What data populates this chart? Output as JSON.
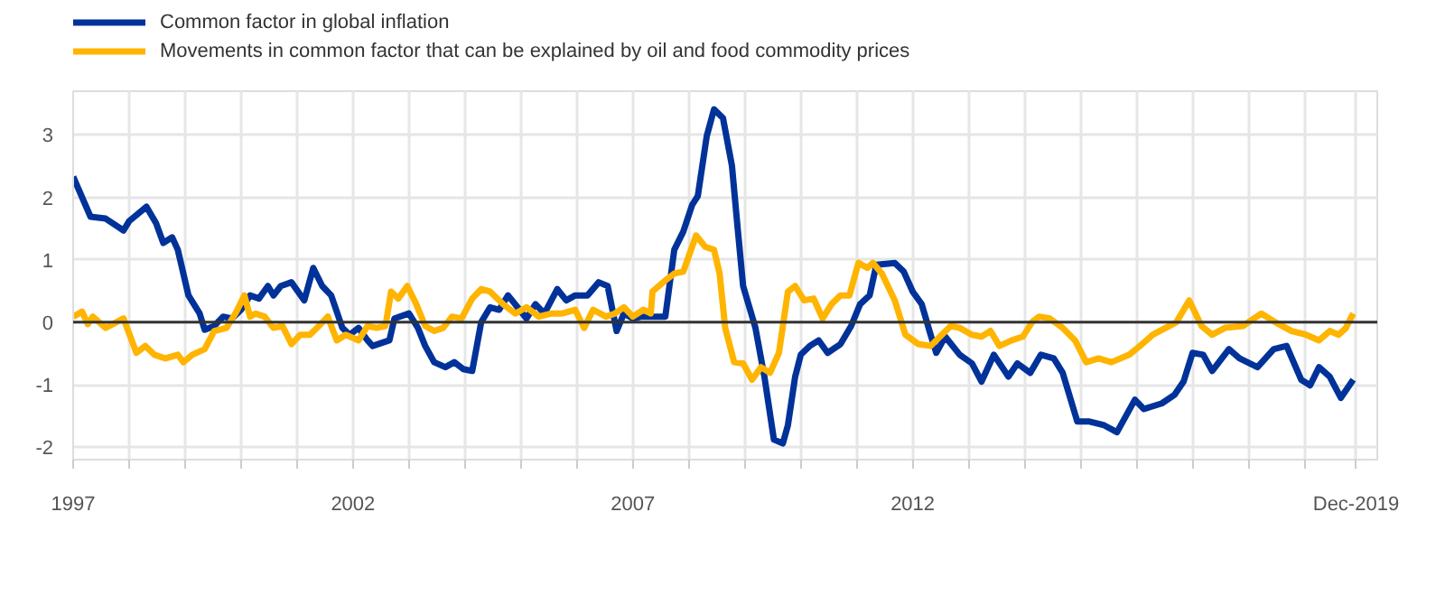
{
  "chart_data": {
    "type": "line",
    "xlim": [
      1997,
      2020.3
    ],
    "ylim": [
      -2.2,
      3.7
    ],
    "xticks": [
      1997,
      {
        "value": 1998,
        "label": null
      },
      {
        "value": 1999,
        "label": null
      },
      {
        "value": 2000,
        "label": null
      },
      {
        "value": 2001,
        "label": null
      },
      2002,
      {
        "value": 2003,
        "label": null
      },
      {
        "value": 2004,
        "label": null
      },
      {
        "value": 2005,
        "label": null
      },
      {
        "value": 2006,
        "label": null
      },
      2007,
      {
        "value": 2008,
        "label": null
      },
      {
        "value": 2009,
        "label": null
      },
      {
        "value": 2010,
        "label": null
      },
      {
        "value": 2011,
        "label": null
      },
      2012,
      {
        "value": 2013,
        "label": null
      },
      {
        "value": 2014,
        "label": null
      },
      {
        "value": 2015,
        "label": null
      },
      {
        "value": 2016,
        "label": null
      },
      {
        "value": 2017,
        "label": null
      },
      {
        "value": 2018,
        "label": null
      },
      {
        "value": 2019,
        "label": null
      },
      {
        "value": 2019.92,
        "label": "Dec-2019"
      }
    ],
    "yticks": [
      -2,
      -1,
      0,
      1,
      2,
      3
    ],
    "grid": true,
    "legend": "top left",
    "marker": "none",
    "line_style": "solid",
    "ref_lines": [
      {
        "axis": "y",
        "value": 0,
        "color": "#333333"
      }
    ],
    "series": [
      {
        "name": "Common factor in global inflation",
        "color": "#003299",
        "x": [
          1997.0,
          1997.31,
          1997.58,
          1997.9,
          1998.0,
          1998.31,
          1998.48,
          1998.61,
          1998.77,
          1998.87,
          1999.06,
          1999.26,
          1999.35,
          1999.52,
          1999.68,
          1999.84,
          2000.0,
          2000.16,
          2000.32,
          2000.48,
          2000.58,
          2000.71,
          2000.9,
          2001.13,
          2001.29,
          2001.45,
          2001.61,
          2001.81,
          2001.94,
          2002.1,
          2002.26,
          2002.35,
          2002.65,
          2002.74,
          2003.0,
          2003.16,
          2003.29,
          2003.45,
          2003.65,
          2003.81,
          2003.97,
          2004.13,
          2004.29,
          2004.45,
          2004.61,
          2004.77,
          2004.94,
          2005.1,
          2005.26,
          2005.42,
          2005.65,
          2005.81,
          2005.97,
          2006.19,
          2006.39,
          2006.55,
          2006.71,
          2006.84,
          2007.0,
          2007.16,
          2007.58,
          2007.74,
          2007.9,
          2008.06,
          2008.16,
          2008.32,
          2008.45,
          2008.61,
          2008.77,
          2008.87,
          2008.97,
          2009.19,
          2009.35,
          2009.52,
          2009.68,
          2009.77,
          2009.9,
          2010.0,
          2010.16,
          2010.32,
          2010.48,
          2010.71,
          2010.9,
          2011.06,
          2011.23,
          2011.35,
          2011.68,
          2011.84,
          2012.0,
          2012.16,
          2012.32,
          2012.42,
          2012.58,
          2012.84,
          2013.06,
          2013.23,
          2013.45,
          2013.71,
          2013.87,
          2014.1,
          2014.29,
          2014.52,
          2014.68,
          2014.94,
          2015.16,
          2015.42,
          2015.65,
          2015.97,
          2016.13,
          2016.45,
          2016.68,
          2016.84,
          2017.0,
          2017.19,
          2017.35,
          2017.65,
          2017.84,
          2018.16,
          2018.45,
          2018.68,
          2018.94,
          2019.1,
          2019.26,
          2019.45,
          2019.65,
          2019.87
        ],
        "values": [
          2.33,
          1.69,
          1.66,
          1.47,
          1.62,
          1.85,
          1.59,
          1.27,
          1.36,
          1.16,
          0.43,
          0.14,
          -0.12,
          -0.06,
          0.09,
          0.06,
          0.2,
          0.43,
          0.38,
          0.58,
          0.43,
          0.58,
          0.64,
          0.35,
          0.87,
          0.58,
          0.43,
          -0.09,
          -0.2,
          -0.09,
          -0.29,
          -0.38,
          -0.29,
          0.06,
          0.14,
          -0.09,
          -0.38,
          -0.64,
          -0.72,
          -0.64,
          -0.75,
          -0.78,
          0.0,
          0.24,
          0.2,
          0.43,
          0.24,
          0.06,
          0.29,
          0.14,
          0.53,
          0.35,
          0.43,
          0.43,
          0.64,
          0.58,
          -0.14,
          0.14,
          0.06,
          0.09,
          0.09,
          1.16,
          1.45,
          1.88,
          2.02,
          2.98,
          3.41,
          3.27,
          2.51,
          1.53,
          0.58,
          -0.09,
          -0.87,
          -1.88,
          -1.94,
          -1.65,
          -0.87,
          -0.52,
          -0.38,
          -0.29,
          -0.49,
          -0.35,
          -0.06,
          0.29,
          0.43,
          0.92,
          0.95,
          0.81,
          0.49,
          0.29,
          -0.2,
          -0.49,
          -0.23,
          -0.52,
          -0.66,
          -0.95,
          -0.52,
          -0.87,
          -0.66,
          -0.81,
          -0.52,
          -0.58,
          -0.81,
          -1.59,
          -1.59,
          -1.65,
          -1.76,
          -1.24,
          -1.39,
          -1.3,
          -1.16,
          -0.95,
          -0.49,
          -0.52,
          -0.78,
          -0.43,
          -0.58,
          -0.72,
          -0.43,
          -0.38,
          -0.92,
          -1.01,
          -0.72,
          -0.87,
          -1.21,
          -0.92
        ]
      },
      {
        "name": "Movements in common factor that can be explained by oil and food commodity prices",
        "color": "#ffb400",
        "x": [
          1997.0,
          1997.16,
          1997.26,
          1997.35,
          1997.58,
          1997.9,
          1998.13,
          1998.29,
          1998.45,
          1998.65,
          1998.87,
          1998.97,
          1999.13,
          1999.35,
          1999.52,
          1999.74,
          1999.9,
          2000.06,
          2000.16,
          2000.26,
          2000.42,
          2000.58,
          2000.74,
          2000.9,
          2001.06,
          2001.23,
          2001.39,
          2001.55,
          2001.71,
          2001.87,
          2002.1,
          2002.26,
          2002.42,
          2002.58,
          2002.68,
          2002.81,
          2002.97,
          2003.13,
          2003.29,
          2003.45,
          2003.61,
          2003.77,
          2003.94,
          2004.13,
          2004.29,
          2004.45,
          2004.68,
          2004.9,
          2005.1,
          2005.32,
          2005.55,
          2005.74,
          2005.97,
          2006.13,
          2006.29,
          2006.52,
          2006.68,
          2006.84,
          2007.0,
          2007.19,
          2007.32,
          2007.35,
          2007.58,
          2007.74,
          2007.9,
          2008.13,
          2008.29,
          2008.45,
          2008.55,
          2008.65,
          2008.81,
          2008.97,
          2009.13,
          2009.29,
          2009.45,
          2009.61,
          2009.77,
          2009.9,
          2010.06,
          2010.23,
          2010.39,
          2010.55,
          2010.71,
          2010.87,
          2011.03,
          2011.19,
          2011.29,
          2011.45,
          2011.68,
          2011.87,
          2012.1,
          2012.32,
          2012.52,
          2012.68,
          2012.84,
          2013.06,
          2013.23,
          2013.39,
          2013.55,
          2013.77,
          2013.97,
          2014.13,
          2014.26,
          2014.45,
          2014.68,
          2014.9,
          2015.1,
          2015.32,
          2015.55,
          2015.87,
          2016.06,
          2016.29,
          2016.52,
          2016.71,
          2016.94,
          2017.16,
          2017.35,
          2017.58,
          2017.9,
          2018.23,
          2018.48,
          2018.77,
          2019.03,
          2019.26,
          2019.45,
          2019.61,
          2019.74,
          2019.87
        ],
        "values": [
          0.09,
          0.17,
          -0.03,
          0.09,
          -0.09,
          0.06,
          -0.49,
          -0.38,
          -0.52,
          -0.58,
          -0.52,
          -0.64,
          -0.52,
          -0.43,
          -0.14,
          -0.09,
          0.14,
          0.43,
          0.09,
          0.14,
          0.09,
          -0.09,
          -0.06,
          -0.35,
          -0.2,
          -0.2,
          -0.06,
          0.09,
          -0.29,
          -0.2,
          -0.29,
          -0.06,
          -0.09,
          -0.06,
          0.49,
          0.38,
          0.58,
          0.29,
          -0.06,
          -0.14,
          -0.09,
          0.09,
          0.06,
          0.38,
          0.53,
          0.49,
          0.29,
          0.14,
          0.24,
          0.09,
          0.14,
          0.14,
          0.2,
          -0.09,
          0.2,
          0.09,
          0.14,
          0.24,
          0.09,
          0.2,
          0.14,
          0.49,
          0.67,
          0.78,
          0.81,
          1.39,
          1.21,
          1.16,
          0.78,
          -0.09,
          -0.64,
          -0.66,
          -0.92,
          -0.72,
          -0.81,
          -0.49,
          0.49,
          0.58,
          0.35,
          0.38,
          0.06,
          0.29,
          0.43,
          0.43,
          0.95,
          0.87,
          0.95,
          0.78,
          0.35,
          -0.2,
          -0.35,
          -0.38,
          -0.2,
          -0.06,
          -0.09,
          -0.2,
          -0.23,
          -0.14,
          -0.38,
          -0.29,
          -0.23,
          0.0,
          0.09,
          0.06,
          -0.09,
          -0.29,
          -0.64,
          -0.58,
          -0.64,
          -0.52,
          -0.38,
          -0.2,
          -0.09,
          0.0,
          0.35,
          -0.06,
          -0.2,
          -0.09,
          -0.06,
          0.14,
          0.0,
          -0.14,
          -0.2,
          -0.29,
          -0.14,
          -0.2,
          -0.09,
          0.14
        ]
      }
    ]
  }
}
